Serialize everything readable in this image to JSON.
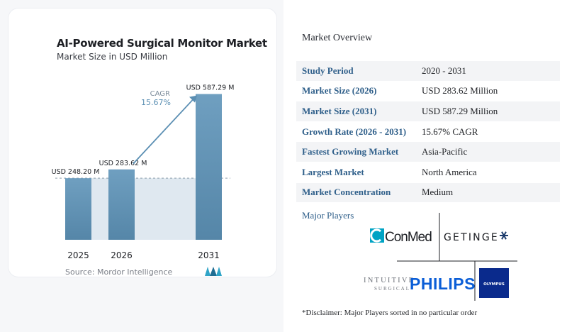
{
  "chart": {
    "title": "AI-Powered Surgical Monitor Market",
    "subtitle": "Market Size in USD Million",
    "source": "Source: Mordor Intelligence",
    "cagr_label": "CAGR",
    "cagr_value": "15.67%"
  },
  "chart_data": {
    "type": "bar",
    "categories": [
      "2025",
      "2026",
      "2031"
    ],
    "values": [
      248.2,
      283.62,
      587.29
    ],
    "data_labels": [
      "USD 248.20 M",
      "USD 283.62 M",
      "USD 587.29 M"
    ],
    "title": "AI-Powered Surgical Monitor Market",
    "subtitle": "Market Size in USD Million",
    "xlabel": "",
    "ylabel": "",
    "ylim": [
      0,
      600
    ],
    "grid": false,
    "baseline_reference": 248.2,
    "annotation": "CAGR 15.67%"
  },
  "colors": {
    "bar_top": "#6f9fc0",
    "bar_bottom": "#5586a8",
    "arrow": "#5b8fb3",
    "shade": "#dfe8f0",
    "accent_text": "#2f5f8a",
    "cagr_text": "#5b8fb3"
  },
  "overview": {
    "title": "Market Overview",
    "rows": [
      {
        "key": "Study Period",
        "value": "2020 - 2031"
      },
      {
        "key": "Market Size (2026)",
        "value": "USD 283.62 Million"
      },
      {
        "key": "Market Size (2031)",
        "value": "USD 587.29 Million"
      },
      {
        "key": "Growth Rate (2026 - 2031)",
        "value": "15.67% CAGR"
      },
      {
        "key": "Fastest Growing Market",
        "value": "Asia-Pacific"
      },
      {
        "key": "Largest Market",
        "value": "North America"
      },
      {
        "key": "Market Concentration",
        "value": "Medium"
      }
    ]
  },
  "players": {
    "title": "Major Players",
    "logos": {
      "conmed": "ConMed",
      "getinge": "GETINGE",
      "intuitive_top": "INTUITIVE",
      "intuitive_bottom": "SURGICAL",
      "philips": "PHILIPS",
      "olympus": "OLYMPUS"
    },
    "disclaimer": "*Disclaimer: Major Players sorted in no particular order"
  }
}
